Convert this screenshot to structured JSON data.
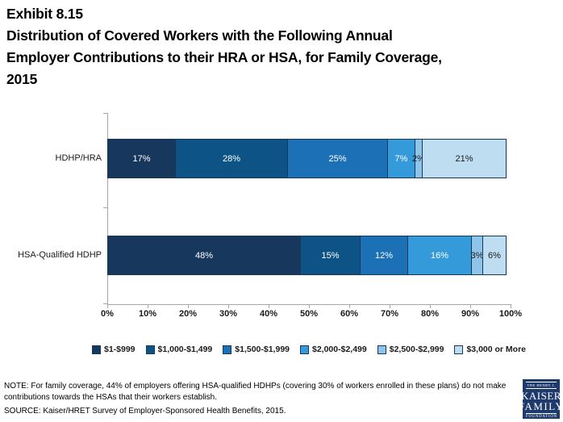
{
  "title": {
    "lines": [
      "Exhibit 8.15",
      "Distribution of Covered Workers with the Following Annual",
      "Employer Contributions to their HRA or HSA, for Family Coverage,",
      "2015"
    ]
  },
  "chart_data": {
    "type": "bar",
    "subtype": "horizontal-stacked",
    "title": "Distribution of Covered Workers with the Following Annual Employer Contributions to their HRA or HSA, for Family Coverage, 2015",
    "categories": [
      "HDHP/HRA",
      "HSA-Qualified HDHP"
    ],
    "series": [
      {
        "name": "$1-$999",
        "color": "#17375D",
        "label_color": "#FFFFFF",
        "values": [
          17,
          48
        ]
      },
      {
        "name": "$1,000-$1,499",
        "color": "#0E5385",
        "label_color": "#FFFFFF",
        "values": [
          28,
          15
        ]
      },
      {
        "name": "$1,500-$1,999",
        "color": "#1C70B6",
        "label_color": "#FFFFFF",
        "values": [
          25,
          12
        ]
      },
      {
        "name": "$2,000-$2,499",
        "color": "#359AD9",
        "label_color": "#FFFFFF",
        "values": [
          7,
          16
        ]
      },
      {
        "name": "$2,500-$2,999",
        "color": "#8FC4E9",
        "label_color": "#1A1A1A",
        "values": [
          2,
          3
        ]
      },
      {
        "name": "$3,000 or More",
        "color": "#BEDDF1",
        "label_color": "#1A1A1A",
        "values": [
          21,
          6
        ]
      }
    ],
    "x_ticks": [
      "0%",
      "10%",
      "20%",
      "30%",
      "40%",
      "50%",
      "60%",
      "70%",
      "80%",
      "90%",
      "100%"
    ],
    "xlim": [
      0,
      100
    ],
    "value_unit": "%",
    "grid": false,
    "legend_position": "bottom",
    "axis_color": "#A6A6A6",
    "segment_border_color": "#17375D"
  },
  "footer": {
    "note": "NOTE:  For family coverage, 44% of employers offering HSA-qualified HDHPs (covering 30% of workers enrolled in these plans) do not make contributions towards the HSAs that their workers establish.",
    "source": "SOURCE: Kaiser/HRET Survey of Employer-Sponsored Health Benefits, 2015."
  },
  "logo": {
    "line1": "THE HENRY J.",
    "line2": "KAISER",
    "line3": "FAMILY",
    "line4": "FOUNDATION",
    "bg_color": "#1E3A6D"
  }
}
